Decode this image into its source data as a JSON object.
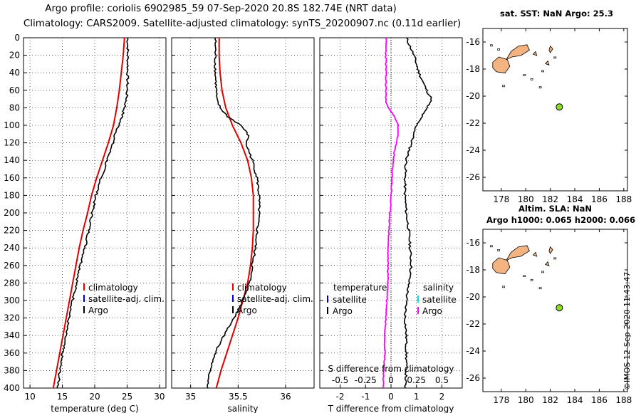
{
  "titles": {
    "line1": "Argo profile: coriolis 6902985_59 07-Sep-2020 20.8S 182.74E (NRT data)",
    "line2": "Climatology: CARS2009. Satellite-adjusted climatology: synTS_20200907.nc (0.11d earlier)"
  },
  "colors": {
    "argo": "#000000",
    "climatology": "#e00000",
    "satellite": "#0000cc",
    "salinity_diff": "#ff00ff",
    "salinity_sat": "#00e0e0",
    "land": "#f4b482",
    "float_marker": "#8edc28"
  },
  "depth_axis": {
    "ylim": [
      0,
      400
    ],
    "ticks": [
      0,
      20,
      40,
      60,
      80,
      100,
      120,
      140,
      160,
      180,
      200,
      220,
      240,
      260,
      280,
      300,
      320,
      340,
      360,
      380,
      400
    ]
  },
  "chart_data": [
    {
      "type": "line",
      "name": "temperature",
      "xlabel": "temperature (deg C)",
      "xlim": [
        9,
        31
      ],
      "xticks": [
        10,
        15,
        20,
        25,
        30
      ],
      "xticklabels": [
        "10",
        "15",
        "20",
        "25",
        "30"
      ],
      "legend": [
        "climatology",
        "satellite-adj. clim.",
        "Argo"
      ],
      "series": [
        {
          "name": "climatology",
          "depth": [
            0,
            20,
            40,
            60,
            80,
            100,
            120,
            140,
            160,
            180,
            200,
            220,
            240,
            260,
            280,
            300,
            320,
            340,
            360,
            380,
            400
          ],
          "values": [
            24.6,
            24.4,
            24.1,
            23.8,
            23.4,
            22.9,
            22.1,
            21.2,
            20.3,
            19.5,
            18.9,
            18.2,
            17.6,
            17.1,
            16.6,
            16.1,
            15.6,
            15.1,
            14.6,
            14.1,
            13.6
          ]
        },
        {
          "name": "Argo",
          "depth": [
            0,
            20,
            40,
            60,
            70,
            80,
            90,
            100,
            110,
            120,
            140,
            160,
            180,
            200,
            220,
            240,
            260,
            280,
            300,
            320,
            340,
            360,
            380,
            400
          ],
          "values": [
            25.1,
            25.1,
            25.1,
            25.0,
            24.9,
            24.6,
            24.2,
            23.7,
            23.2,
            22.8,
            21.9,
            21.0,
            20.2,
            19.6,
            19.1,
            18.5,
            17.8,
            17.2,
            16.6,
            16.0,
            15.5,
            15.0,
            14.6,
            14.3
          ]
        }
      ]
    },
    {
      "type": "line",
      "name": "salinity",
      "xlabel": "salinity",
      "xlim": [
        34.8,
        36.3
      ],
      "xticks": [
        35,
        35.5,
        36
      ],
      "xticklabels": [
        "35",
        "35.5",
        "36"
      ],
      "legend": [
        "climatology",
        "satellite-adj. clim.",
        "Argo"
      ],
      "series": [
        {
          "name": "climatology",
          "depth": [
            0,
            20,
            40,
            60,
            80,
            100,
            120,
            140,
            160,
            180,
            200,
            220,
            240,
            260,
            280,
            300,
            320,
            340,
            360,
            380,
            400
          ],
          "values": [
            35.3,
            35.3,
            35.31,
            35.33,
            35.37,
            35.44,
            35.53,
            35.6,
            35.64,
            35.66,
            35.66,
            35.66,
            35.65,
            35.63,
            35.6,
            35.55,
            35.5,
            35.44,
            35.38,
            35.32,
            35.27
          ]
        },
        {
          "name": "Argo",
          "depth": [
            0,
            20,
            40,
            60,
            70,
            80,
            90,
            100,
            110,
            115,
            120,
            140,
            160,
            180,
            200,
            220,
            240,
            260,
            280,
            300,
            320,
            340,
            360,
            380,
            400
          ],
          "values": [
            35.26,
            35.26,
            35.26,
            35.27,
            35.27,
            35.31,
            35.39,
            35.53,
            35.6,
            35.61,
            35.58,
            35.65,
            35.7,
            35.72,
            35.72,
            35.7,
            35.68,
            35.65,
            35.62,
            35.55,
            35.46,
            35.35,
            35.26,
            35.2,
            35.18
          ]
        }
      ]
    },
    {
      "type": "line",
      "name": "difference",
      "xlabel": "T difference from climatology",
      "xlim": [
        -2.8,
        2.8
      ],
      "xticks": [
        -2,
        -1,
        0,
        1,
        2
      ],
      "xticklabels": [
        "-2",
        "-1",
        "0",
        "1",
        "2"
      ],
      "top_xlabel": "S difference from climatology",
      "top_xticklabels": [
        "-0.5",
        "-0.25",
        "0",
        "0.25",
        "0.5"
      ],
      "legend_left": {
        "title": "temperature",
        "items": [
          "satellite",
          "Argo"
        ]
      },
      "legend_right": {
        "title": "salinity",
        "items": [
          "satellite",
          "Argo"
        ]
      },
      "series": [
        {
          "name": "T Argo - clim",
          "depth": [
            0,
            20,
            40,
            60,
            70,
            80,
            90,
            100,
            110,
            120,
            140,
            160,
            180,
            200,
            220,
            240,
            260,
            280,
            300,
            320,
            340,
            360,
            380,
            400
          ],
          "values": [
            0.6,
            0.9,
            1.1,
            1.4,
            1.6,
            1.4,
            1.2,
            1.0,
            0.9,
            0.8,
            0.6,
            0.55,
            0.55,
            0.6,
            0.7,
            0.75,
            0.8,
            0.7,
            0.6,
            0.55,
            0.6,
            0.6,
            0.6,
            0.55
          ]
        },
        {
          "name": "S Argo - clim",
          "depth": [
            0,
            20,
            40,
            60,
            75,
            80,
            90,
            100,
            110,
            115,
            120,
            140,
            160,
            180,
            200,
            220,
            240,
            260,
            280,
            300,
            320,
            340,
            360,
            380,
            400
          ],
          "values": [
            -0.05,
            -0.05,
            -0.05,
            -0.05,
            -0.05,
            -0.02,
            0.03,
            0.07,
            0.07,
            0.06,
            0.05,
            0.02,
            0.01,
            0.0,
            -0.01,
            -0.02,
            -0.03,
            -0.03,
            -0.03,
            -0.04,
            -0.05,
            -0.06,
            -0.06,
            -0.07,
            -0.08
          ]
        }
      ]
    },
    {
      "type": "scatter",
      "name": "map-sst",
      "header": "sat. SST: NaN Argo: 25.3",
      "xlim": [
        176.5,
        188.3
      ],
      "ylim": [
        -27,
        -15
      ],
      "xticks": [
        178,
        180,
        182,
        184,
        186,
        188
      ],
      "yticks": [
        -16,
        -18,
        -20,
        -22,
        -24,
        -26
      ],
      "point": {
        "lon": 182.74,
        "lat": -20.8
      }
    },
    {
      "type": "scatter",
      "name": "map-sla",
      "header_line1": "Altim. SLA: NaN",
      "header_line2": "Argo h1000: 0.065 h2000: 0.066",
      "xlim": [
        176.5,
        188.3
      ],
      "ylim": [
        -27,
        -15
      ],
      "xticks": [
        178,
        180,
        182,
        184,
        186,
        188
      ],
      "yticks": [
        -16,
        -18,
        -20,
        -22,
        -24,
        -26
      ],
      "point": {
        "lon": 182.74,
        "lat": -20.8
      }
    }
  ],
  "stamp": "©IMOS 12-Sep-2020 11:43:47"
}
